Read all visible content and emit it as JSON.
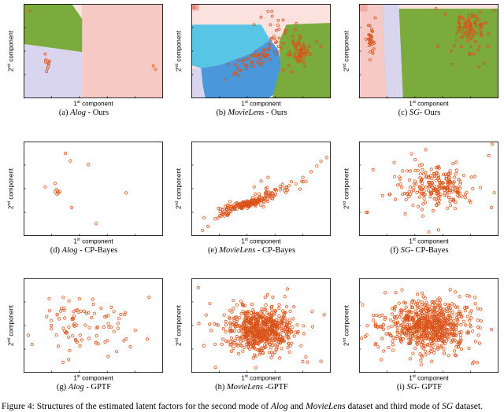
{
  "colors": {
    "marker": "#d95319",
    "green": "#7cab3d",
    "pink": "#f7c9c4",
    "palepink": "#fbe2df",
    "lavender": "#d9d5ee",
    "cyan": "#58c4e6",
    "blue": "#4a97dc",
    "salmon": "#f2aaa2",
    "box": "#000000"
  },
  "axes": {
    "x": {
      "n": "1",
      "sup": "st",
      "rest": " component"
    },
    "y": {
      "n": "2",
      "sup": "nd",
      "rest": " component"
    }
  },
  "figure_caption": {
    "p1": "Figure 4: Structures of the estimated latent factors for the second mode of ",
    "i1": "Alog",
    "p2": " and ",
    "i2": "MovieLens",
    "p3": " dataset and third mode of ",
    "i3": "SG",
    "p4": " dataset."
  },
  "chart_data": [
    {
      "type": "scatter",
      "caption": {
        "pre": "(a) ",
        "dataset": "Alog",
        "post": " - Ours"
      },
      "marker_r": 1.5,
      "regions": [
        {
          "color": "pink",
          "poly": [
            [
              0.42,
              1
            ],
            [
              1,
              1
            ],
            [
              1,
              0
            ],
            [
              0.42,
              0
            ]
          ]
        },
        {
          "color": "green",
          "poly": [
            [
              0,
              1
            ],
            [
              0.42,
              1
            ],
            [
              0.42,
              0.49
            ],
            [
              0,
              0.575
            ]
          ]
        },
        {
          "color": "lavender",
          "poly": [
            [
              0,
              0.575
            ],
            [
              0.42,
              0.49
            ],
            [
              0.42,
              0
            ],
            [
              0,
              0
            ]
          ]
        },
        {
          "color": "palepink",
          "poly": [
            [
              0.345,
              1
            ],
            [
              0.42,
              1
            ],
            [
              0.42,
              0.84
            ]
          ]
        }
      ],
      "points": [
        [
          0.045,
          0.925
        ],
        [
          0.93,
          0.345
        ],
        [
          0.945,
          0.305
        ],
        [
          0.155,
          0.47
        ]
      ],
      "clusters": [
        {
          "cx": 0.165,
          "cy": 0.36,
          "sx": 0.012,
          "sy": 0.055,
          "n": 9,
          "rot": 0
        }
      ]
    },
    {
      "type": "scatter",
      "caption": {
        "pre": "(b) ",
        "dataset": "MovieLens",
        "post": " - Ours"
      },
      "marker_r": 1.5,
      "regions": [
        {
          "color": "palepink",
          "poly": [
            [
              0,
              1
            ],
            [
              1,
              1
            ],
            [
              1,
              0
            ],
            [
              0,
              0
            ]
          ]
        },
        {
          "color": "salmon",
          "poly": [
            [
              0,
              1
            ],
            [
              0.055,
              1
            ],
            [
              0.055,
              0.93
            ],
            [
              0,
              0.93
            ]
          ]
        },
        {
          "color": "cyan",
          "poly": [
            [
              0,
              0.78
            ],
            [
              0.5,
              0.78
            ],
            [
              0.565,
              0.62
            ],
            [
              0.42,
              0.47
            ],
            [
              0.2,
              0.35
            ],
            [
              0.07,
              0.32
            ],
            [
              0,
              0.35
            ]
          ]
        },
        {
          "color": "blue",
          "poly": [
            [
              0.07,
              0.32
            ],
            [
              0.2,
              0.35
            ],
            [
              0.42,
              0.47
            ],
            [
              0.565,
              0.62
            ],
            [
              0.62,
              0.52
            ],
            [
              0.66,
              0.3
            ],
            [
              0.6,
              0.05
            ],
            [
              0.55,
              0
            ],
            [
              0.1,
              0
            ],
            [
              0.08,
              0.15
            ]
          ]
        },
        {
          "color": "lavender",
          "poly": [
            [
              0,
              0.32
            ],
            [
              0.07,
              0.32
            ],
            [
              0.08,
              0.15
            ],
            [
              0.1,
              0
            ],
            [
              0,
              0
            ]
          ]
        },
        {
          "color": "green",
          "poly": [
            [
              0.68,
              0.78
            ],
            [
              1,
              0.8
            ],
            [
              1,
              0
            ],
            [
              0.58,
              0
            ],
            [
              0.64,
              0.35
            ],
            [
              0.63,
              0.6
            ]
          ]
        }
      ],
      "points": [
        [
          0.02,
          0.965
        ],
        [
          0.55,
          0.92
        ],
        [
          0.5,
          0.86
        ],
        [
          0.58,
          0.87
        ],
        [
          0.45,
          0.78
        ],
        [
          0.9,
          0.6
        ],
        [
          0.93,
          0.55
        ],
        [
          0.3,
          0.25
        ],
        [
          0.25,
          0.2
        ],
        [
          0.66,
          0.3
        ],
        [
          0.7,
          0.35
        ],
        [
          0.72,
          0.28
        ]
      ],
      "clusters": [
        {
          "cx": 0.5,
          "cy": 0.45,
          "sx": 0.09,
          "sy": 0.035,
          "n": 45,
          "rot": 35
        },
        {
          "cx": 0.78,
          "cy": 0.5,
          "sx": 0.03,
          "sy": 0.07,
          "n": 60,
          "rot": 0
        },
        {
          "cx": 0.63,
          "cy": 0.7,
          "sx": 0.05,
          "sy": 0.07,
          "n": 18,
          "rot": 0
        },
        {
          "cx": 0.36,
          "cy": 0.33,
          "sx": 0.05,
          "sy": 0.04,
          "n": 12,
          "rot": 30
        }
      ]
    },
    {
      "type": "scatter",
      "caption": {
        "pre": "(c) ",
        "dataset": "SG",
        "post": "- Ours"
      },
      "marker_r": 1.5,
      "regions": [
        {
          "color": "green",
          "poly": [
            [
              0,
              1
            ],
            [
              1,
              1
            ],
            [
              1,
              0
            ],
            [
              0,
              0
            ]
          ]
        },
        {
          "color": "pink",
          "poly": [
            [
              0,
              1
            ],
            [
              0.165,
              1
            ],
            [
              0.195,
              0
            ],
            [
              0,
              0
            ]
          ]
        },
        {
          "color": "lavender",
          "poly": [
            [
              0.165,
              1
            ],
            [
              0.285,
              1
            ],
            [
              0.315,
              0
            ],
            [
              0.195,
              0
            ]
          ]
        },
        {
          "color": "palepink",
          "poly": [
            [
              0.285,
              1
            ],
            [
              1,
              1
            ],
            [
              1,
              0.95
            ],
            [
              0.285,
              0.95
            ]
          ]
        },
        {
          "color": "salmon",
          "poly": [
            [
              0,
              1
            ],
            [
              0.06,
              1
            ],
            [
              0.06,
              0.92
            ],
            [
              0,
              0.92
            ]
          ]
        }
      ],
      "points": [
        [
          0.55,
          0.95
        ],
        [
          0.97,
          0.93
        ],
        [
          0.9,
          0.37
        ],
        [
          0.67,
          0.36
        ],
        [
          0.62,
          0.89
        ],
        [
          0.86,
          0.33
        ]
      ],
      "clusters": [
        {
          "cx": 0.085,
          "cy": 0.62,
          "sx": 0.013,
          "sy": 0.1,
          "n": 32,
          "rot": 0
        },
        {
          "cx": 0.8,
          "cy": 0.76,
          "sx": 0.065,
          "sy": 0.08,
          "n": 85,
          "rot": 0
        },
        {
          "cx": 0.76,
          "cy": 0.52,
          "sx": 0.09,
          "sy": 0.05,
          "n": 10,
          "rot": 0
        }
      ]
    },
    {
      "type": "scatter",
      "caption": {
        "pre": "(d) ",
        "dataset": "Alog",
        "post": " - CP-Bayes"
      },
      "marker_r": 1.7,
      "regions": [],
      "points": [
        [
          0.3,
          0.875
        ],
        [
          0.335,
          0.795
        ],
        [
          0.465,
          0.755
        ],
        [
          0.155,
          0.52
        ],
        [
          0.225,
          0.555
        ],
        [
          0.235,
          0.49
        ],
        [
          0.245,
          0.475
        ],
        [
          0.225,
          0.465
        ],
        [
          0.25,
          0.455
        ],
        [
          0.26,
          0.47
        ],
        [
          0.24,
          0.44
        ],
        [
          0.735,
          0.455
        ],
        [
          0.52,
          0.13
        ],
        [
          0.345,
          0.3
        ]
      ],
      "clusters": []
    },
    {
      "type": "scatter",
      "caption": {
        "pre": "(e) ",
        "dataset": "MovieLens",
        "post": " - CP-Bayes"
      },
      "marker_r": 1.7,
      "regions": [],
      "points": [
        [
          0.9,
          0.74
        ],
        [
          0.93,
          0.79
        ],
        [
          0.86,
          0.68
        ],
        [
          0.8,
          0.62
        ],
        [
          0.12,
          0.1
        ],
        [
          0.08,
          0.06
        ],
        [
          0.5,
          0.58
        ],
        [
          0.45,
          0.52
        ],
        [
          0.55,
          0.62
        ],
        [
          0.97,
          0.83
        ]
      ],
      "clusters": [
        {
          "cx": 0.4,
          "cy": 0.34,
          "sx": 0.085,
          "sy": 0.02,
          "n": 150,
          "rot": 18
        },
        {
          "cx": 0.6,
          "cy": 0.47,
          "sx": 0.1,
          "sy": 0.03,
          "n": 45,
          "rot": 20
        },
        {
          "cx": 0.23,
          "cy": 0.23,
          "sx": 0.05,
          "sy": 0.02,
          "n": 20,
          "rot": 18
        }
      ]
    },
    {
      "type": "scatter",
      "caption": {
        "pre": "(f) ",
        "dataset": "SG",
        "post": "- CP-Bayes"
      },
      "marker_r": 1.7,
      "regions": [],
      "points": [
        [
          0.06,
          0.25
        ],
        [
          0.1,
          0.7
        ],
        [
          0.93,
          0.85
        ],
        [
          0.95,
          0.3
        ],
        [
          0.5,
          0.04
        ]
      ],
      "clusters": [
        {
          "cx": 0.56,
          "cy": 0.52,
          "sx": 0.12,
          "sy": 0.1,
          "n": 190,
          "rot": 0
        },
        {
          "cx": 0.56,
          "cy": 0.52,
          "sx": 0.21,
          "sy": 0.17,
          "n": 45,
          "rot": 0
        }
      ]
    },
    {
      "type": "scatter",
      "caption": {
        "pre": "(g) ",
        "dataset": "Alog",
        "post": " - GPTF"
      },
      "marker_r": 1.7,
      "regions": [],
      "points": [
        [
          0.9,
          0.8
        ],
        [
          0.06,
          0.3
        ]
      ],
      "clusters": [
        {
          "cx": 0.44,
          "cy": 0.52,
          "sx": 0.16,
          "sy": 0.14,
          "n": 80,
          "rot": 0
        },
        {
          "cx": 0.44,
          "cy": 0.5,
          "sx": 0.26,
          "sy": 0.2,
          "n": 14,
          "rot": 0
        }
      ]
    },
    {
      "type": "scatter",
      "caption": {
        "pre": "(h) ",
        "dataset": "MovieLens",
        "post": " -GPTF"
      },
      "marker_r": 1.7,
      "regions": [],
      "points": [
        [
          0.05,
          0.9
        ],
        [
          0.93,
          0.12
        ]
      ],
      "clusters": [
        {
          "cx": 0.5,
          "cy": 0.46,
          "sx": 0.11,
          "sy": 0.11,
          "n": 520,
          "rot": 0
        },
        {
          "cx": 0.5,
          "cy": 0.46,
          "sx": 0.19,
          "sy": 0.17,
          "n": 140,
          "rot": 0
        }
      ]
    },
    {
      "type": "scatter",
      "caption": {
        "pre": "(i) ",
        "dataset": "SG",
        "post": "- GPTF"
      },
      "marker_r": 1.7,
      "regions": [],
      "points": [],
      "clusters": [
        {
          "cx": 0.5,
          "cy": 0.5,
          "sx": 0.13,
          "sy": 0.12,
          "n": 560,
          "rot": 0
        },
        {
          "cx": 0.5,
          "cy": 0.5,
          "sx": 0.22,
          "sy": 0.19,
          "n": 170,
          "rot": 0
        }
      ]
    }
  ]
}
